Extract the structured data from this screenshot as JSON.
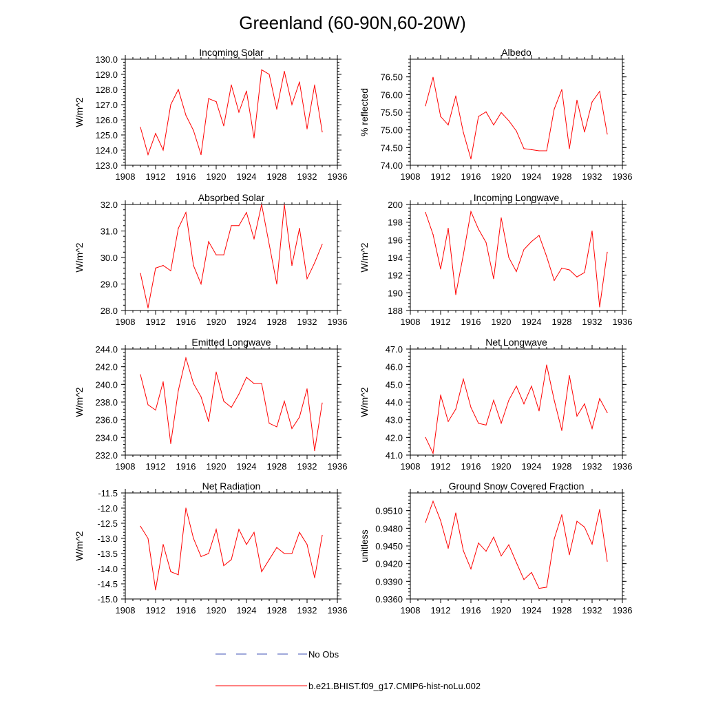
{
  "figure": {
    "title": "Greenland (60-90N,60-20W)",
    "legend": {
      "obs_label": "No Obs",
      "obs_color": "#3f51b5",
      "model_label": "b.e21.BHIST.f09_g17.CMIP6-hist-noLu.002",
      "model_color": "#ff0000"
    }
  },
  "chart_data": [
    {
      "type": "line",
      "title": "Incoming Solar",
      "ylabel": "W/m^2",
      "xlim": [
        1908,
        1936
      ],
      "xticks": [
        "1908",
        "1912",
        "1916",
        "1920",
        "1924",
        "1928",
        "1932",
        "1936"
      ],
      "ylim": [
        123.0,
        130.0
      ],
      "yticks": [
        "123.0",
        "124.0",
        "125.0",
        "126.0",
        "127.0",
        "128.0",
        "129.0",
        "130.0"
      ],
      "series": [
        {
          "color": "#ff0000",
          "x": [
            1910,
            1911,
            1912,
            1913,
            1914,
            1915,
            1916,
            1917,
            1918,
            1919,
            1920,
            1921,
            1922,
            1923,
            1924,
            1925,
            1926,
            1927,
            1928,
            1929,
            1930,
            1931,
            1932,
            1933,
            1934
          ],
          "values": [
            125.5,
            123.7,
            125.1,
            124.0,
            127.0,
            128.0,
            126.3,
            125.3,
            123.7,
            127.4,
            127.2,
            125.6,
            128.3,
            126.5,
            127.9,
            124.8,
            129.3,
            129.0,
            126.7,
            129.2,
            127.0,
            128.5,
            125.4,
            128.3,
            125.2
          ]
        }
      ]
    },
    {
      "type": "line",
      "title": "Albedo",
      "ylabel": "% reflected",
      "xlim": [
        1908,
        1936
      ],
      "xticks": [
        "1908",
        "1912",
        "1916",
        "1920",
        "1924",
        "1928",
        "1932",
        "1936"
      ],
      "ylim": [
        74.0,
        77.0
      ],
      "yticks": [
        "74.00",
        "74.50",
        "75.00",
        "75.50",
        "76.00",
        "76.50"
      ],
      "series": [
        {
          "color": "#ff0000",
          "x": [
            1910,
            1911,
            1912,
            1913,
            1914,
            1915,
            1916,
            1917,
            1918,
            1919,
            1920,
            1921,
            1922,
            1923,
            1924,
            1925,
            1926,
            1927,
            1928,
            1929,
            1930,
            1931,
            1932,
            1933,
            1934
          ],
          "values": [
            75.68,
            76.49,
            75.38,
            75.14,
            75.96,
            74.93,
            74.18,
            75.38,
            75.51,
            75.14,
            75.49,
            75.26,
            74.97,
            74.47,
            74.44,
            74.41,
            74.41,
            75.59,
            76.14,
            74.47,
            75.84,
            74.94,
            75.79,
            76.09,
            74.88
          ]
        }
      ]
    },
    {
      "type": "line",
      "title": "Absorbed Solar",
      "ylabel": "W/m^2",
      "xlim": [
        1908,
        1936
      ],
      "xticks": [
        "1908",
        "1912",
        "1916",
        "1920",
        "1924",
        "1928",
        "1932",
        "1936"
      ],
      "ylim": [
        28.0,
        32.0
      ],
      "yticks": [
        "28.0",
        "29.0",
        "30.0",
        "31.0",
        "32.0"
      ],
      "series": [
        {
          "color": "#ff0000",
          "x": [
            1910,
            1911,
            1912,
            1913,
            1914,
            1915,
            1916,
            1917,
            1918,
            1919,
            1920,
            1921,
            1922,
            1923,
            1924,
            1925,
            1926,
            1927,
            1928,
            1929,
            1930,
            1931,
            1932,
            1933,
            1934
          ],
          "values": [
            29.4,
            28.1,
            29.6,
            29.7,
            29.5,
            31.1,
            31.7,
            29.7,
            29.0,
            30.6,
            30.1,
            30.1,
            31.2,
            31.2,
            31.7,
            30.7,
            32.0,
            30.5,
            29.0,
            32.0,
            29.7,
            31.1,
            29.2,
            29.8,
            30.5
          ]
        }
      ]
    },
    {
      "type": "line",
      "title": "Incoming Longwave",
      "ylabel": "W/m^2",
      "xlim": [
        1908,
        1936
      ],
      "xticks": [
        "1908",
        "1912",
        "1916",
        "1920",
        "1924",
        "1928",
        "1932",
        "1936"
      ],
      "ylim": [
        188,
        200
      ],
      "yticks": [
        "188",
        "190",
        "192",
        "194",
        "196",
        "198",
        "200"
      ],
      "series": [
        {
          "color": "#ff0000",
          "x": [
            1910,
            1911,
            1912,
            1913,
            1914,
            1915,
            1916,
            1917,
            1918,
            1919,
            1920,
            1921,
            1922,
            1923,
            1924,
            1925,
            1926,
            1927,
            1928,
            1929,
            1930,
            1931,
            1932,
            1933,
            1934
          ],
          "values": [
            199.1,
            196.6,
            192.7,
            197.3,
            189.8,
            194.3,
            199.2,
            197.2,
            195.7,
            191.6,
            198.5,
            194.0,
            192.4,
            194.9,
            195.8,
            196.5,
            194.1,
            191.4,
            192.8,
            192.6,
            191.8,
            192.3,
            197.0,
            188.4,
            194.6
          ]
        }
      ]
    },
    {
      "type": "line",
      "title": "Emitted Longwave",
      "ylabel": "W/m^2",
      "xlim": [
        1908,
        1936
      ],
      "xticks": [
        "1908",
        "1912",
        "1916",
        "1920",
        "1924",
        "1928",
        "1932",
        "1936"
      ],
      "ylim": [
        232.0,
        244.0
      ],
      "yticks": [
        "232.0",
        "234.0",
        "236.0",
        "238.0",
        "240.0",
        "242.0",
        "244.0"
      ],
      "series": [
        {
          "color": "#ff0000",
          "x": [
            1910,
            1911,
            1912,
            1913,
            1914,
            1915,
            1916,
            1917,
            1918,
            1919,
            1920,
            1921,
            1922,
            1923,
            1924,
            1925,
            1926,
            1927,
            1928,
            1929,
            1930,
            1931,
            1932,
            1933,
            1934
          ],
          "values": [
            241.1,
            237.7,
            237.1,
            240.3,
            233.3,
            239.3,
            243.0,
            240.1,
            238.6,
            235.8,
            241.4,
            238.1,
            237.4,
            238.9,
            240.8,
            240.1,
            240.1,
            235.6,
            235.2,
            238.1,
            235.0,
            236.3,
            239.5,
            232.5,
            237.9
          ]
        }
      ]
    },
    {
      "type": "line",
      "title": "Net Longwave",
      "ylabel": "W/m^2",
      "xlim": [
        1908,
        1936
      ],
      "xticks": [
        "1908",
        "1912",
        "1916",
        "1920",
        "1924",
        "1928",
        "1932",
        "1936"
      ],
      "ylim": [
        41.0,
        47.0
      ],
      "yticks": [
        "41.0",
        "42.0",
        "43.0",
        "44.0",
        "45.0",
        "46.0",
        "47.0"
      ],
      "series": [
        {
          "color": "#ff0000",
          "x": [
            1910,
            1911,
            1912,
            1913,
            1914,
            1915,
            1916,
            1917,
            1918,
            1919,
            1920,
            1921,
            1922,
            1923,
            1924,
            1925,
            1926,
            1927,
            1928,
            1929,
            1930,
            1931,
            1932,
            1933,
            1934
          ],
          "values": [
            42.0,
            41.1,
            44.4,
            42.9,
            43.6,
            45.3,
            43.7,
            42.8,
            42.7,
            44.1,
            42.8,
            44.1,
            44.9,
            43.9,
            44.9,
            43.5,
            46.1,
            44.1,
            42.4,
            45.5,
            43.2,
            43.9,
            42.5,
            44.2,
            43.4
          ]
        }
      ]
    },
    {
      "type": "line",
      "title": "Net Radiation",
      "ylabel": "W/m^2",
      "xlim": [
        1908,
        1936
      ],
      "xticks": [
        "1908",
        "1912",
        "1916",
        "1920",
        "1924",
        "1928",
        "1932",
        "1936"
      ],
      "ylim": [
        -15.0,
        -11.5
      ],
      "yticks": [
        "-15.0",
        "-14.5",
        "-14.0",
        "-13.5",
        "-13.0",
        "-12.5",
        "-12.0",
        "-11.5"
      ],
      "series": [
        {
          "color": "#ff0000",
          "x": [
            1910,
            1911,
            1912,
            1913,
            1914,
            1915,
            1916,
            1917,
            1918,
            1919,
            1920,
            1921,
            1922,
            1923,
            1924,
            1925,
            1926,
            1927,
            1928,
            1929,
            1930,
            1931,
            1932,
            1933,
            1934
          ],
          "values": [
            -12.6,
            -13.0,
            -14.7,
            -13.2,
            -14.1,
            -14.2,
            -12.0,
            -13.0,
            -13.6,
            -13.5,
            -12.7,
            -13.9,
            -13.7,
            -12.7,
            -13.2,
            -12.8,
            -14.1,
            -13.7,
            -13.3,
            -13.5,
            -13.5,
            -12.8,
            -13.2,
            -14.3,
            -12.9
          ]
        }
      ]
    },
    {
      "type": "line",
      "title": "Ground Snow Covered Fraction",
      "ylabel": "unitless",
      "xlim": [
        1908,
        1936
      ],
      "xticks": [
        "1908",
        "1912",
        "1916",
        "1920",
        "1924",
        "1928",
        "1932",
        "1936"
      ],
      "ylim": [
        0.936,
        0.954
      ],
      "yticks": [
        "0.9360",
        "0.9390",
        "0.9420",
        "0.9450",
        "0.9480",
        "0.9510"
      ],
      "series": [
        {
          "color": "#ff0000",
          "x": [
            1910,
            1911,
            1912,
            1913,
            1914,
            1915,
            1916,
            1917,
            1918,
            1919,
            1920,
            1921,
            1922,
            1923,
            1924,
            1925,
            1926,
            1927,
            1928,
            1929,
            1930,
            1931,
            1932,
            1933,
            1934
          ],
          "values": [
            0.949,
            0.9526,
            0.9493,
            0.9446,
            0.9506,
            0.9442,
            0.9411,
            0.9455,
            0.9441,
            0.9465,
            0.9433,
            0.9452,
            0.9422,
            0.9393,
            0.9405,
            0.9378,
            0.938,
            0.9462,
            0.9503,
            0.9435,
            0.9492,
            0.9482,
            0.9453,
            0.9512,
            0.9424
          ]
        }
      ]
    }
  ]
}
